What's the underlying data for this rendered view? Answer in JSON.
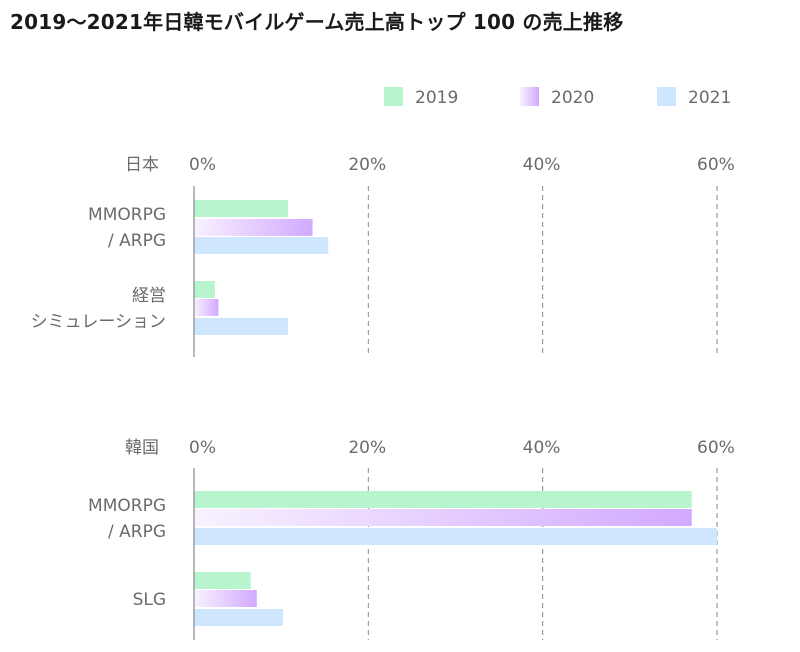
{
  "title": "2019〜2021年日韓モバイルゲーム売上高トップ 100 の売上推移",
  "chart_data": {
    "type": "bar",
    "orientation": "horizontal",
    "legend": [
      "2019",
      "2020",
      "2021"
    ],
    "legend_position": "top-right",
    "xlim": [
      0,
      60
    ],
    "x_ticks": [
      "0%",
      "20%",
      "40%",
      "60%"
    ],
    "x_tick_values": [
      0,
      20,
      40,
      60
    ],
    "grid": "vertical-dashed",
    "colors": {
      "2019": "#b8f5cf",
      "2020_start": "#f8f2ff",
      "2020_end": "#d2a9ff",
      "2021": "#cfe6ff"
    },
    "panels": [
      {
        "name": "日本",
        "categories": [
          {
            "label_lines": [
              "MMORPG",
              "/ ARPG"
            ],
            "values": [
              10.8,
              13.6,
              15.4
            ]
          },
          {
            "label_lines": [
              "経営",
              "シミュレーション"
            ],
            "values": [
              2.4,
              2.8,
              10.8
            ]
          }
        ]
      },
      {
        "name": "韓国",
        "categories": [
          {
            "label_lines": [
              "MMORPG",
              "/ ARPG"
            ],
            "values": [
              57.1,
              57.1,
              60.0
            ]
          },
          {
            "label_lines": [
              "SLG"
            ],
            "values": [
              6.5,
              7.2,
              10.2
            ]
          }
        ]
      }
    ]
  }
}
